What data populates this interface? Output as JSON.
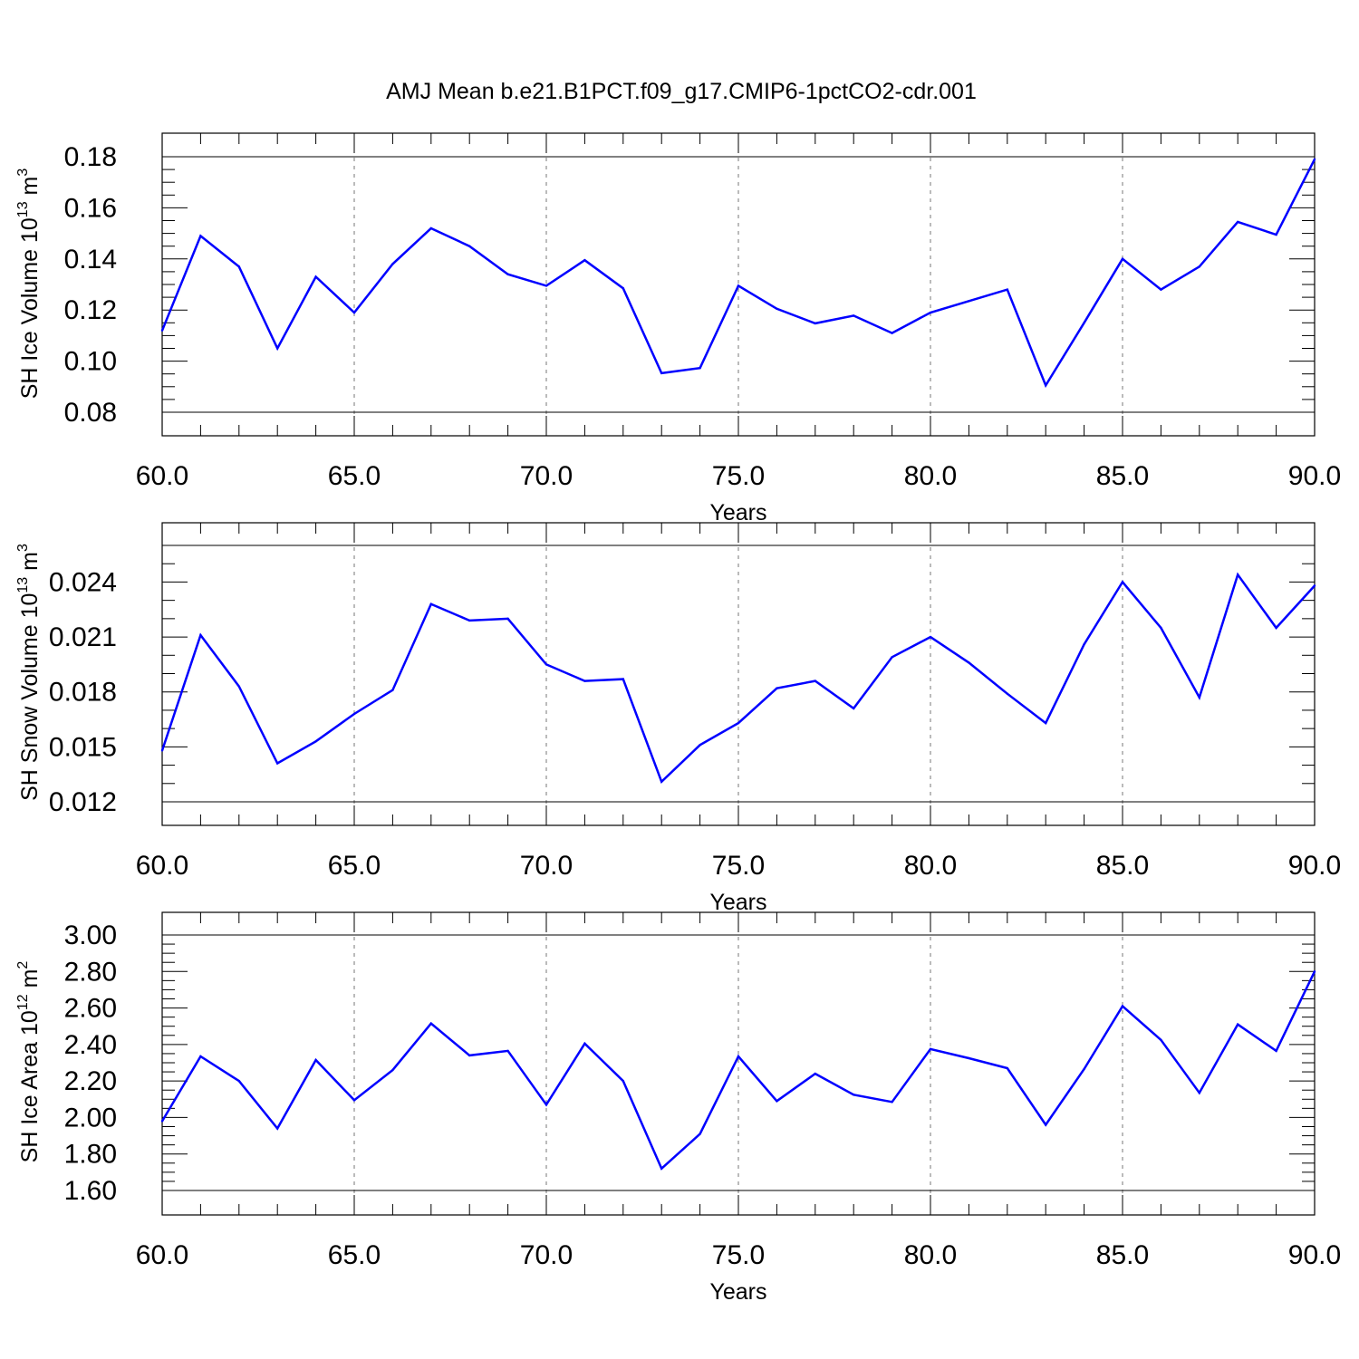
{
  "title": "AMJ Mean b.e21.B1PCT.f09_g17.CMIP6-1pctCO2-cdr.001",
  "colors": {
    "series": "#0000ff",
    "axis": "#000000",
    "grid": "#777777"
  },
  "chart_data": [
    {
      "type": "line",
      "xlabel": "Years",
      "ylabel": "SH Ice Volume 10",
      "ylabel_exp": "13",
      "ylabel_unit": " m",
      "ylabel_unit_exp": "3",
      "xlim": [
        60,
        90
      ],
      "ylim": [
        0.08,
        0.18
      ],
      "xticks": [
        "60.0",
        "65.0",
        "70.0",
        "75.0",
        "80.0",
        "85.0",
        "90.0"
      ],
      "yticks": [
        "0.08",
        "0.10",
        "0.12",
        "0.14",
        "0.16",
        "0.18"
      ],
      "grid": "dashed vertical at major x ticks",
      "x": [
        60,
        61,
        62,
        63,
        64,
        65,
        66,
        67,
        68,
        69,
        70,
        71,
        72,
        73,
        74,
        75,
        76,
        77,
        78,
        79,
        80,
        81,
        82,
        83,
        84,
        85,
        86,
        87,
        88,
        89,
        90
      ],
      "values": [
        0.112,
        0.149,
        0.137,
        0.105,
        0.133,
        0.119,
        0.138,
        0.152,
        0.145,
        0.134,
        0.1295,
        0.1395,
        0.1285,
        0.0953,
        0.0973,
        0.1295,
        0.1205,
        0.1148,
        0.1178,
        0.111,
        0.119,
        0.1235,
        0.128,
        0.0905,
        0.115,
        0.14,
        0.128,
        0.137,
        0.1545,
        0.1495,
        0.179
      ]
    },
    {
      "type": "line",
      "xlabel": "Years",
      "ylabel": "SH Snow Volume 10",
      "ylabel_exp": "13",
      "ylabel_unit": " m",
      "ylabel_unit_exp": "3",
      "xlim": [
        60,
        90
      ],
      "ylim": [
        0.012,
        0.026
      ],
      "xticks": [
        "60.0",
        "65.0",
        "70.0",
        "75.0",
        "80.0",
        "85.0",
        "90.0"
      ],
      "yticks": [
        "0.012",
        "0.015",
        "0.018",
        "0.021",
        "0.024"
      ],
      "grid": "dashed vertical at major x ticks",
      "x": [
        60,
        61,
        62,
        63,
        64,
        65,
        66,
        67,
        68,
        69,
        70,
        71,
        72,
        73,
        74,
        75,
        76,
        77,
        78,
        79,
        80,
        81,
        82,
        83,
        84,
        85,
        86,
        87,
        88,
        89,
        90
      ],
      "values": [
        0.0148,
        0.0211,
        0.0183,
        0.0141,
        0.0153,
        0.0168,
        0.0181,
        0.0228,
        0.0219,
        0.022,
        0.0195,
        0.0186,
        0.0187,
        0.0131,
        0.0151,
        0.0163,
        0.0182,
        0.0186,
        0.0171,
        0.0199,
        0.021,
        0.0196,
        0.0179,
        0.0163,
        0.0206,
        0.024,
        0.0215,
        0.0177,
        0.0244,
        0.0215,
        0.0238
      ]
    },
    {
      "type": "line",
      "xlabel": "Years",
      "ylabel": "SH Ice Area 10",
      "ylabel_exp": "12",
      "ylabel_unit": " m",
      "ylabel_unit_exp": "2",
      "xlim": [
        60,
        90
      ],
      "ylim": [
        1.6,
        3.0
      ],
      "xticks": [
        "60.0",
        "65.0",
        "70.0",
        "75.0",
        "80.0",
        "85.0",
        "90.0"
      ],
      "yticks": [
        "1.60",
        "1.80",
        "2.00",
        "2.20",
        "2.40",
        "2.60",
        "2.80",
        "3.00"
      ],
      "grid": "dashed vertical at major x ticks",
      "x": [
        60,
        61,
        62,
        63,
        64,
        65,
        66,
        67,
        68,
        69,
        70,
        71,
        72,
        73,
        74,
        75,
        76,
        77,
        78,
        79,
        80,
        81,
        82,
        83,
        84,
        85,
        86,
        87,
        88,
        89,
        90
      ],
      "values": [
        1.98,
        2.335,
        2.2,
        1.94,
        2.315,
        2.095,
        2.26,
        2.515,
        2.34,
        2.365,
        2.07,
        2.405,
        2.2,
        1.72,
        1.91,
        2.335,
        2.09,
        2.24,
        2.125,
        2.085,
        2.375,
        2.325,
        2.27,
        1.96,
        2.265,
        2.61,
        2.425,
        2.135,
        2.51,
        2.365,
        2.8
      ]
    }
  ]
}
